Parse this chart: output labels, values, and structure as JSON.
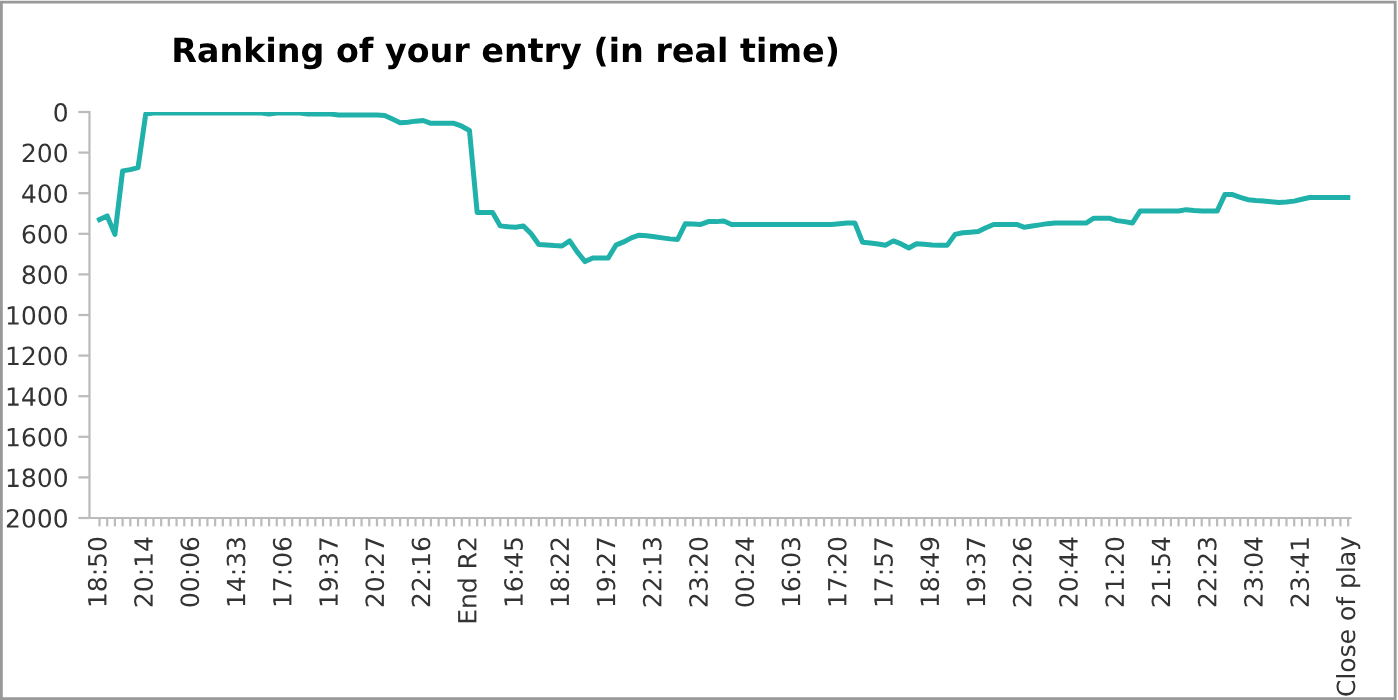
{
  "chart_data": {
    "type": "line",
    "title": "Ranking of your entry (in real time)",
    "categories": [
      "18:50",
      null,
      null,
      null,
      null,
      null,
      "20:14",
      null,
      null,
      null,
      null,
      null,
      "00:06",
      null,
      null,
      null,
      null,
      null,
      "14:33",
      null,
      null,
      null,
      null,
      null,
      "17:06",
      null,
      null,
      null,
      null,
      null,
      "19:37",
      null,
      null,
      null,
      null,
      null,
      "20:27",
      null,
      null,
      null,
      null,
      null,
      "22:16",
      null,
      null,
      null,
      null,
      null,
      "End R2",
      null,
      null,
      null,
      null,
      null,
      "16:45",
      null,
      null,
      null,
      null,
      null,
      "18:22",
      null,
      null,
      null,
      null,
      null,
      "19:27",
      null,
      null,
      null,
      null,
      null,
      "22:13",
      null,
      null,
      null,
      null,
      null,
      "23:20",
      null,
      null,
      null,
      null,
      null,
      "00:24",
      null,
      null,
      null,
      null,
      null,
      "16:03",
      null,
      null,
      null,
      null,
      null,
      "17:20",
      null,
      null,
      null,
      null,
      null,
      "17:57",
      null,
      null,
      null,
      null,
      null,
      "18:49",
      null,
      null,
      null,
      null,
      null,
      "19:37",
      null,
      null,
      null,
      null,
      null,
      "20:26",
      null,
      null,
      null,
      null,
      null,
      "20:44",
      null,
      null,
      null,
      null,
      null,
      "21:20",
      null,
      null,
      null,
      null,
      null,
      "21:54",
      null,
      null,
      null,
      null,
      null,
      "22:23",
      null,
      null,
      null,
      null,
      null,
      "23:04",
      null,
      null,
      null,
      null,
      null,
      "23:41",
      null,
      null,
      null,
      null,
      null,
      "Close of play"
    ],
    "series": [
      {
        "color": "#20b2aa",
        "values": [
          530,
          512,
          603,
          290,
          284,
          274,
          10,
          5,
          5,
          5,
          5,
          5,
          5,
          5,
          5,
          5,
          5,
          5,
          5,
          5,
          5,
          5,
          10,
          5,
          5,
          5,
          5,
          10,
          10,
          10,
          10,
          15,
          15,
          15,
          15,
          15,
          15,
          17,
          35,
          53,
          50,
          45,
          42,
          56,
          56,
          56,
          56,
          70,
          91,
          495,
          495,
          495,
          561,
          565,
          568,
          561,
          600,
          653,
          655,
          658,
          660,
          635,
          690,
          737,
          719,
          719,
          719,
          656,
          640,
          620,
          607,
          610,
          615,
          620,
          625,
          628,
          551,
          552,
          554,
          540,
          540,
          537,
          554,
          554,
          554,
          554,
          554,
          554,
          554,
          554,
          554,
          554,
          554,
          554,
          554,
          554,
          550,
          547,
          547,
          642,
          645,
          650,
          656,
          635,
          650,
          670,
          649,
          652,
          655,
          656,
          656,
          603,
          595,
          592,
          589,
          570,
          554,
          554,
          554,
          554,
          568,
          562,
          556,
          550,
          547,
          547,
          547,
          547,
          547,
          523,
          523,
          523,
          535,
          540,
          547,
          488,
          488,
          488,
          488,
          488,
          488,
          481,
          485,
          488,
          488,
          488,
          407,
          407,
          420,
          432,
          436,
          439,
          442,
          446,
          443,
          439,
          430,
          421,
          421,
          421,
          421,
          421,
          421
        ]
      }
    ],
    "ylim": [
      2000,
      0
    ],
    "yticks": [
      0,
      200,
      400,
      600,
      800,
      1000,
      1200,
      1400,
      1600,
      1800,
      2000
    ],
    "grid": false,
    "legend": false
  }
}
